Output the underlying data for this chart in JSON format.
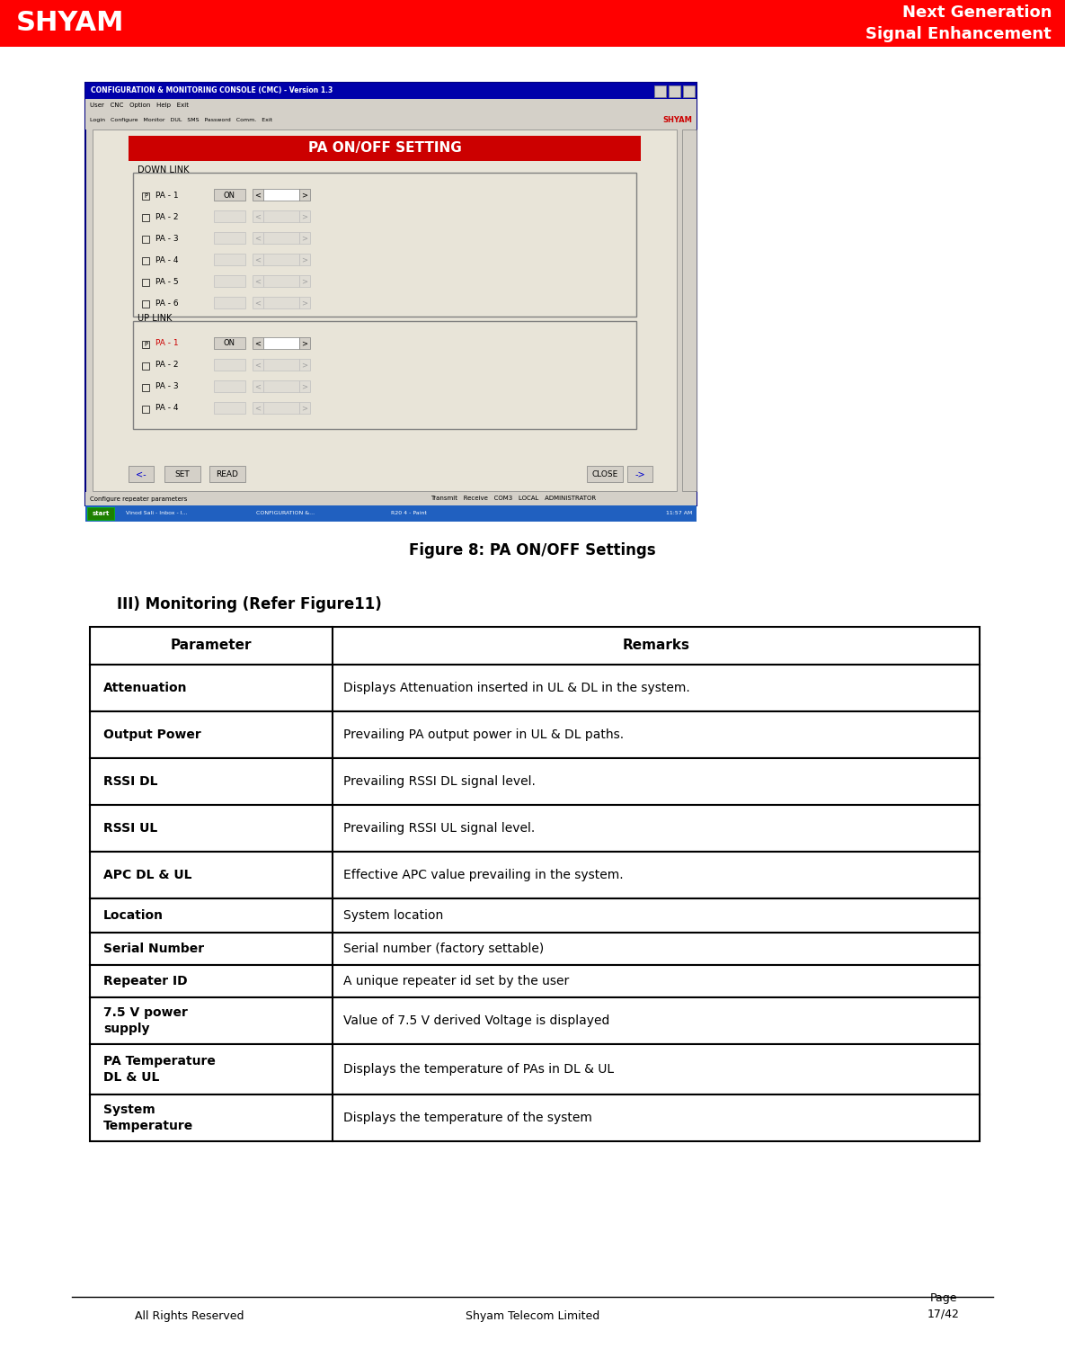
{
  "header_bg": "#FF0000",
  "header_text_right": "Next Generation\nSignal Enhancement",
  "header_shyam_text": "SHYAM",
  "figure_caption": "Figure 8: PA ON/OFF Settings",
  "section_title": "III) Monitoring (Refer Figure11)",
  "table_headers": [
    "Parameter",
    "Remarks"
  ],
  "table_rows": [
    [
      "Attenuation",
      "Displays Attenuation inserted in UL & DL in the system."
    ],
    [
      "Output Power",
      "Prevailing PA output power in UL & DL paths."
    ],
    [
      "RSSI DL",
      "Prevailing RSSI DL signal level."
    ],
    [
      "RSSI UL",
      "Prevailing RSSI UL signal level."
    ],
    [
      "APC DL & UL",
      "Effective APC value prevailing in the system."
    ],
    [
      "Location",
      "System location"
    ],
    [
      "Serial Number",
      "Serial number (factory settable)"
    ],
    [
      "Repeater ID",
      "A unique repeater id set by the user"
    ],
    [
      "7.5 V power\nsupply",
      "Value of 7.5 V derived Voltage is displayed"
    ],
    [
      "PA Temperature\nDL & UL",
      "Displays the temperature of PAs in DL & UL"
    ],
    [
      "System\nTemperature",
      "Displays the temperature of the system"
    ]
  ],
  "footer_left": "All Rights Reserved",
  "footer_center": "Shyam Telecom Limited",
  "footer_right": "Page\n17/42",
  "bg_color": "#FFFFFF",
  "table_border_color": "#000000"
}
